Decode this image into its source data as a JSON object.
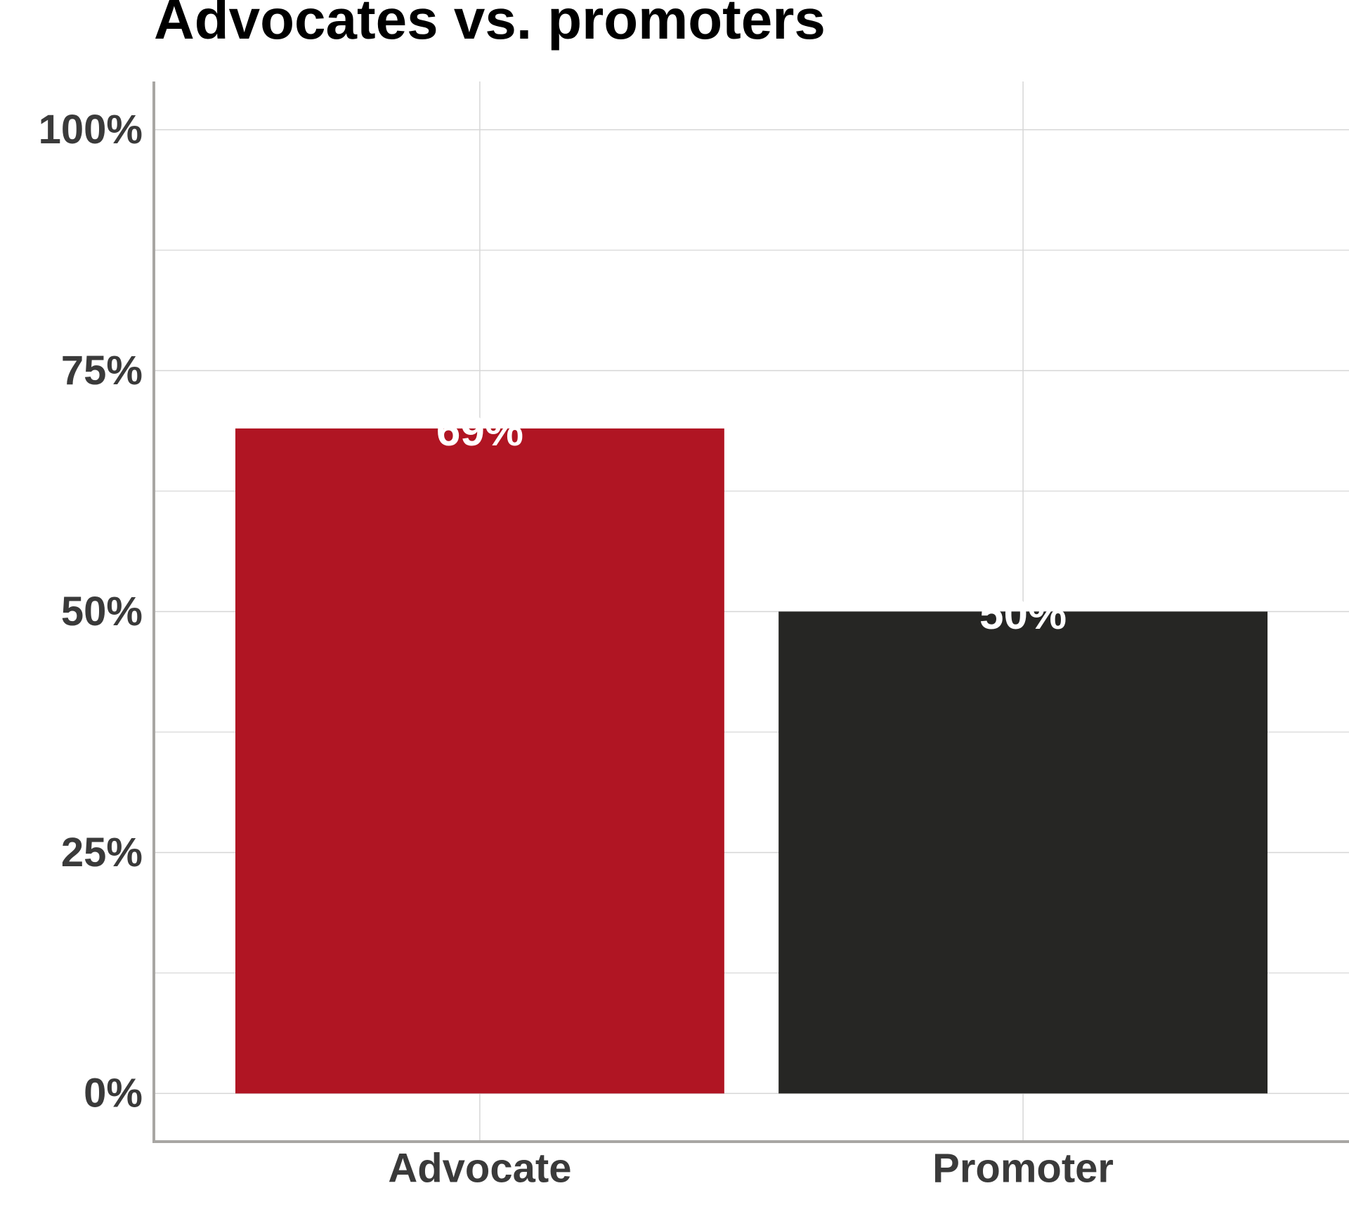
{
  "chart_data": {
    "type": "bar",
    "title": "Advocates vs. promoters",
    "categories": [
      "Advocate",
      "Promoter"
    ],
    "values": [
      69,
      50
    ],
    "value_labels": [
      "69%",
      "50%"
    ],
    "colors": [
      "#b01523",
      "#262624"
    ],
    "ylim": [
      -5,
      105
    ],
    "yticks": [
      {
        "value": 0,
        "label": "0%"
      },
      {
        "value": 25,
        "label": "25%"
      },
      {
        "value": 50,
        "label": "50%"
      },
      {
        "value": 75,
        "label": "75%"
      },
      {
        "value": 100,
        "label": "100%"
      }
    ],
    "grid": true
  }
}
